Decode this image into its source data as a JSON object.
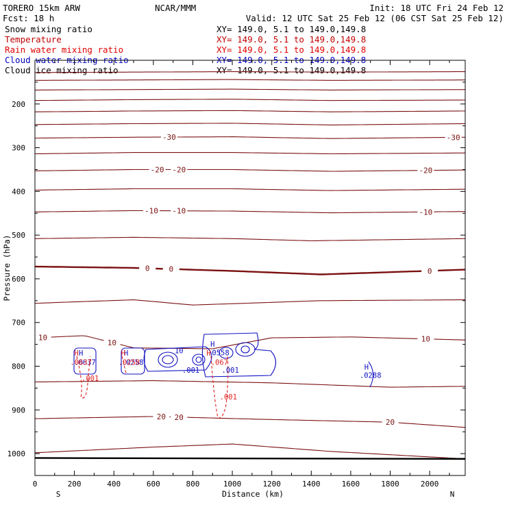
{
  "header": {
    "model": "TORERO  15km ARW",
    "center": "NCAR/MMM",
    "init": "Init: 18 UTC Fri 24 Feb 12",
    "fcst": "Fcst:   18 h",
    "valid": "Valid: 12 UTC Sat 25 Feb 12 (06 CST Sat 25 Feb 12)"
  },
  "fields": [
    {
      "name": "Snow mixing ratio",
      "xy": "XY= 149.0,  5.1 to 149.0,149.8",
      "color": "#000000"
    },
    {
      "name": "Temperature",
      "xy": "XY= 149.0,  5.1 to 149.0,149.8",
      "color": "#c00000"
    },
    {
      "name": "Rain water mixing ratio",
      "xy": "XY= 149.0,  5.1 to 149.0,149.8",
      "color": "#e00000"
    },
    {
      "name": "Cloud water mixing ratio",
      "xy": "XY= 149.0,  5.1 to 149.0,149.8",
      "color": "#0000c0"
    },
    {
      "name": "Cloud ice mixing ratio",
      "xy": "XY= 149.0,  5.1 to 149.0,149.8",
      "color": "#000000"
    }
  ],
  "colors": {
    "temperature": "#7a1010",
    "rain": "#e02020",
    "cloud_water": "#1010c0",
    "axis": "#000000"
  },
  "chart_data": {
    "type": "contour-cross-section",
    "xlabel": "Distance (km)",
    "ylabel": "Pressure (hPa)",
    "xlim": [
      0,
      2180
    ],
    "ylim": [
      1050,
      100
    ],
    "x_ticks": [
      0,
      200,
      400,
      600,
      800,
      1000,
      1200,
      1400,
      1600,
      1800,
      2000
    ],
    "y_ticks": [
      200,
      300,
      400,
      500,
      600,
      700,
      800,
      900,
      1000
    ],
    "x_end_labels": {
      "left": "S",
      "right": "N"
    },
    "temperature_isotherms": [
      {
        "x": [
          0,
          500,
          1000,
          1500,
          2180
        ],
        "p": [
          128,
          127,
          126,
          127,
          126
        ]
      },
      {
        "x": [
          0,
          500,
          1000,
          1500,
          2180
        ],
        "p": [
          146,
          145,
          144,
          146,
          145
        ]
      },
      {
        "x": [
          0,
          500,
          1000,
          1500,
          2180
        ],
        "p": [
          168,
          167,
          166,
          168,
          167
        ]
      },
      {
        "x": [
          0,
          500,
          1000,
          1500,
          2180
        ],
        "p": [
          192,
          190,
          189,
          192,
          191
        ]
      },
      {
        "x": [
          0,
          500,
          1000,
          1500,
          2180
        ],
        "p": [
          218,
          216,
          215,
          218,
          216
        ]
      },
      {
        "x": [
          0,
          500,
          1000,
          1500,
          2180
        ],
        "p": [
          247,
          245,
          244,
          248,
          245
        ]
      },
      {
        "x": [
          0,
          500,
          1000,
          1500,
          2180
        ],
        "p": [
          278,
          276,
          275,
          279,
          276
        ],
        "label": "-30",
        "label_x": [
          680,
          2120
        ]
      },
      {
        "x": [
          0,
          500,
          1000,
          1500,
          2180
        ],
        "p": [
          314,
          311,
          311,
          314,
          312
        ]
      },
      {
        "x": [
          0,
          500,
          1000,
          1500,
          2180
        ],
        "p": [
          353,
          350,
          350,
          354,
          351
        ],
        "label": "-20",
        "label_x": [
          620,
          730,
          1980
        ]
      },
      {
        "x": [
          0,
          500,
          1000,
          1500,
          2180
        ],
        "p": [
          397,
          394,
          394,
          398,
          395
        ]
      },
      {
        "x": [
          0,
          500,
          1000,
          1500,
          2180
        ],
        "p": [
          447,
          444,
          445,
          449,
          446
        ],
        "label": "-10",
        "label_x": [
          590,
          730,
          1980
        ]
      },
      {
        "x": [
          0,
          500,
          1000,
          1400,
          2180
        ],
        "p": [
          508,
          505,
          508,
          513,
          508
        ]
      },
      {
        "x": [
          0,
          500,
          1000,
          1450,
          2180
        ],
        "p": [
          572,
          575,
          582,
          590,
          579
        ],
        "label": "0",
        "label_x": [
          570,
          690,
          2000
        ],
        "bold": true
      },
      {
        "x": [
          0,
          500,
          800,
          1450,
          2180
        ],
        "p": [
          656,
          648,
          660,
          650,
          648
        ]
      },
      {
        "x": [
          0,
          250,
          500,
          900,
          1200,
          1600,
          2180
        ],
        "p": [
          735,
          730,
          758,
          760,
          735,
          733,
          740
        ],
        "label": "10",
        "label_x": [
          40,
          390,
          1980
        ]
      },
      {
        "x": [
          0,
          600,
          1200,
          1800,
          2180
        ],
        "p": [
          836,
          833,
          838,
          848,
          846
        ]
      },
      {
        "x": [
          0,
          600,
          1200,
          1800,
          2180
        ],
        "p": [
          920,
          915,
          922,
          928,
          940
        ],
        "label": "20",
        "label_x": [
          640,
          730,
          1800
        ]
      },
      {
        "x": [
          0,
          600,
          1000,
          1500,
          2180
        ],
        "p": [
          998,
          985,
          978,
          995,
          1012
        ]
      }
    ],
    "surface": {
      "x": [
        0,
        2180
      ],
      "p": [
        1010,
        1012
      ]
    },
    "cloud_water_labels": [
      {
        "text": "H",
        "x": 233,
        "p": 776
      },
      {
        "text": "H",
        "x": 462,
        "p": 776
      },
      {
        "text": "H",
        "x": 900,
        "p": 755
      },
      {
        "text": "H",
        "x": 1680,
        "p": 808
      },
      {
        "text": ".0637",
        "x": 253,
        "p": 797
      },
      {
        "text": ".0258",
        "x": 495,
        "p": 797
      },
      {
        "text": ".0558",
        "x": 930,
        "p": 775
      },
      {
        "text": ".0288",
        "x": 1700,
        "p": 827
      },
      {
        "text": "10",
        "x": 730,
        "p": 770
      },
      {
        "text": ".001",
        "x": 790,
        "p": 815
      },
      {
        "text": ".001",
        "x": 990,
        "p": 815
      }
    ],
    "rain_labels": [
      {
        "text": "H",
        "x": 210,
        "p": 776
      },
      {
        "text": "H",
        "x": 447,
        "p": 776
      },
      {
        "text": "H",
        "x": 880,
        "p": 776
      },
      {
        "text": ".0637",
        "x": 233,
        "p": 797
      },
      {
        "text": ".0258",
        "x": 477,
        "p": 797
      },
      {
        "text": ".067",
        "x": 935,
        "p": 797
      },
      {
        "text": ".001",
        "x": 280,
        "p": 834
      },
      {
        "text": ".001",
        "x": 980,
        "p": 876
      }
    ]
  }
}
